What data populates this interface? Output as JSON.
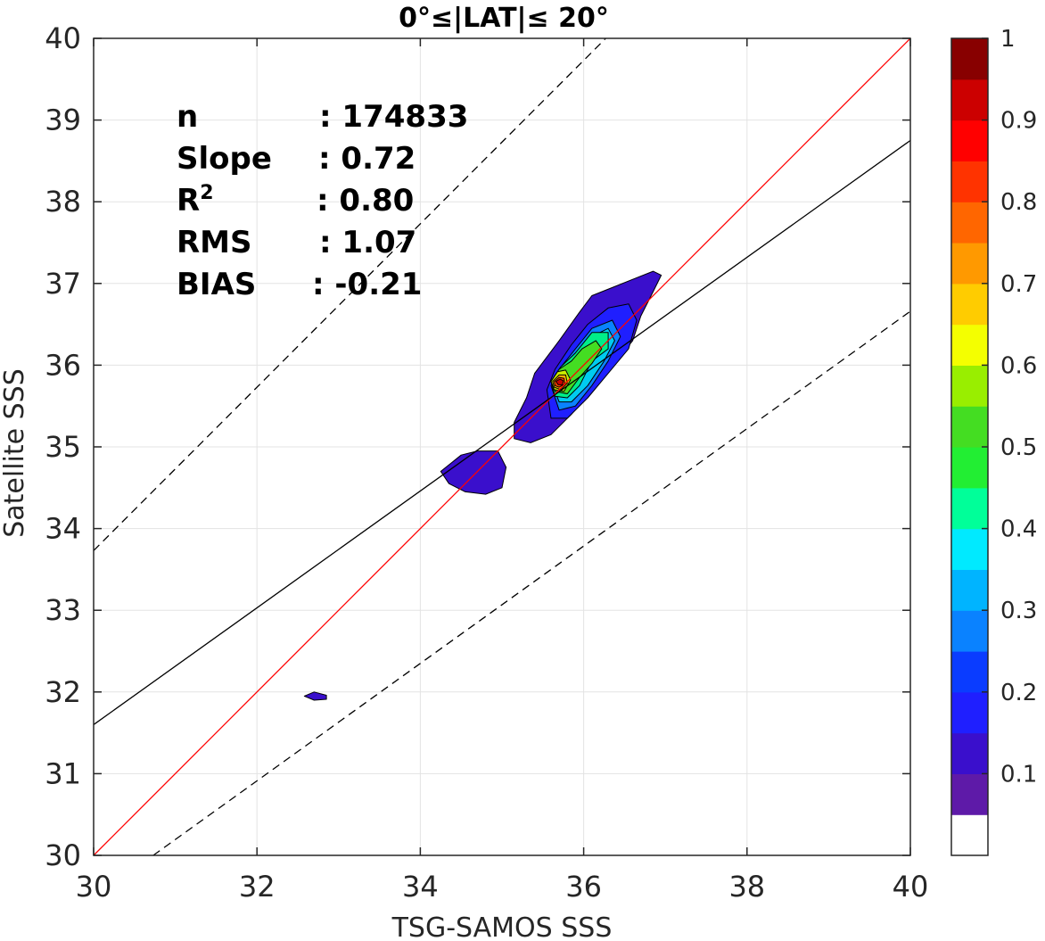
{
  "chart_data": {
    "type": "contour",
    "title": "0°≤|LAT|≤ 20°",
    "xlabel": "TSG-SAMOS SSS",
    "ylabel": "Satellite SSS",
    "xlim": [
      30,
      40
    ],
    "ylim": [
      30,
      40
    ],
    "xticks": [
      "30",
      "32",
      "34",
      "36",
      "38",
      "40"
    ],
    "yticks": [
      "30",
      "31",
      "32",
      "33",
      "34",
      "35",
      "36",
      "37",
      "38",
      "39",
      "40"
    ],
    "grid": true,
    "stats": [
      {
        "label": "n",
        "value": ": 174833"
      },
      {
        "label": "Slope",
        "value": ": 0.72"
      },
      {
        "label": "R",
        "sup": "2",
        "value": ": 0.80"
      },
      {
        "label": "RMS",
        "value": ": 1.07"
      },
      {
        "label": "BIAS",
        "value": ": -0.21"
      }
    ],
    "lines": [
      {
        "kind": "one-to-one",
        "color": "#ff0000",
        "points": [
          [
            30,
            30
          ],
          [
            40,
            40
          ]
        ]
      },
      {
        "kind": "regression",
        "color": "#000000",
        "points": [
          [
            30,
            31.6
          ],
          [
            40,
            38.75
          ]
        ]
      },
      {
        "kind": "upper-bound",
        "color": "#000000",
        "dash": true,
        "points": [
          [
            30,
            33.73
          ],
          [
            36.27,
            40
          ]
        ]
      },
      {
        "kind": "lower-bound",
        "color": "#000000",
        "dash": true,
        "points": [
          [
            30.73,
            30
          ],
          [
            40,
            36.66
          ]
        ]
      }
    ],
    "density_peak": {
      "x": 35.72,
      "y": 35.8
    },
    "contours": [
      {
        "level": 0.05,
        "color": "#3a0fcc",
        "points": [
          [
            35.3,
            35.6
          ],
          [
            35.4,
            35.9
          ],
          [
            35.7,
            36.3
          ],
          [
            35.95,
            36.65
          ],
          [
            36.1,
            36.85
          ],
          [
            36.35,
            36.95
          ],
          [
            36.6,
            37.05
          ],
          [
            36.85,
            37.15
          ],
          [
            36.95,
            37.1
          ],
          [
            36.85,
            36.9
          ],
          [
            36.7,
            36.6
          ],
          [
            36.6,
            36.3
          ],
          [
            36.4,
            36.05
          ],
          [
            36.15,
            35.75
          ],
          [
            35.85,
            35.4
          ],
          [
            35.6,
            35.15
          ],
          [
            35.35,
            35.05
          ],
          [
            35.15,
            35.1
          ],
          [
            35.15,
            35.3
          ]
        ]
      },
      {
        "level": 0.05,
        "color": "#3a0fcc",
        "points": [
          [
            34.25,
            34.7
          ],
          [
            34.5,
            34.9
          ],
          [
            34.7,
            34.95
          ],
          [
            34.95,
            34.95
          ],
          [
            35.05,
            34.75
          ],
          [
            35.0,
            34.5
          ],
          [
            34.8,
            34.42
          ],
          [
            34.55,
            34.45
          ],
          [
            34.35,
            34.55
          ]
        ]
      },
      {
        "level": 0.05,
        "color": "#3a0fcc",
        "points": [
          [
            32.58,
            31.95
          ],
          [
            32.7,
            32.0
          ],
          [
            32.85,
            31.96
          ],
          [
            32.85,
            31.91
          ],
          [
            32.7,
            31.9
          ]
        ]
      },
      {
        "level": 0.15,
        "color": "#1f1fff",
        "points": [
          [
            35.55,
            35.7
          ],
          [
            35.65,
            35.95
          ],
          [
            35.85,
            36.25
          ],
          [
            36.05,
            36.5
          ],
          [
            36.3,
            36.7
          ],
          [
            36.55,
            36.75
          ],
          [
            36.65,
            36.55
          ],
          [
            36.55,
            36.2
          ],
          [
            36.3,
            35.9
          ],
          [
            36.05,
            35.6
          ],
          [
            35.8,
            35.35
          ],
          [
            35.6,
            35.35
          ]
        ]
      },
      {
        "level": 0.25,
        "color": "#0a82ff",
        "points": [
          [
            35.6,
            35.75
          ],
          [
            35.7,
            35.95
          ],
          [
            35.9,
            36.2
          ],
          [
            36.1,
            36.45
          ],
          [
            36.35,
            36.55
          ],
          [
            36.45,
            36.35
          ],
          [
            36.3,
            36.05
          ],
          [
            36.1,
            35.75
          ],
          [
            35.9,
            35.5
          ],
          [
            35.7,
            35.45
          ]
        ]
      },
      {
        "level": 0.35,
        "color": "#00ccf0",
        "points": [
          [
            35.6,
            35.8
          ],
          [
            35.7,
            35.95
          ],
          [
            35.9,
            36.15
          ],
          [
            36.1,
            36.35
          ],
          [
            36.3,
            36.45
          ],
          [
            36.38,
            36.3
          ],
          [
            36.25,
            36.05
          ],
          [
            36.05,
            35.75
          ],
          [
            35.85,
            35.55
          ],
          [
            35.7,
            35.55
          ]
        ]
      },
      {
        "level": 0.45,
        "color": "#00ee88",
        "points": [
          [
            35.6,
            35.8
          ],
          [
            35.72,
            35.98
          ],
          [
            35.9,
            36.15
          ],
          [
            36.1,
            36.4
          ],
          [
            36.3,
            36.4
          ],
          [
            36.3,
            36.2
          ],
          [
            36.1,
            36.05
          ],
          [
            35.95,
            35.75
          ],
          [
            35.8,
            35.6
          ],
          [
            35.65,
            35.62
          ]
        ]
      },
      {
        "level": 0.55,
        "color": "#44dd22",
        "points": [
          [
            35.6,
            35.8
          ],
          [
            35.7,
            35.95
          ],
          [
            35.85,
            36.05
          ],
          [
            35.98,
            36.2
          ],
          [
            36.15,
            36.3
          ],
          [
            36.22,
            36.2
          ],
          [
            36.1,
            36.02
          ],
          [
            35.95,
            35.85
          ],
          [
            35.8,
            35.65
          ],
          [
            35.65,
            35.68
          ]
        ]
      },
      {
        "level": 0.65,
        "color": "#ccee00",
        "points": [
          [
            35.6,
            35.8
          ],
          [
            35.68,
            35.92
          ],
          [
            35.78,
            35.94
          ],
          [
            35.84,
            35.82
          ],
          [
            35.76,
            35.68
          ],
          [
            35.64,
            35.7
          ]
        ]
      },
      {
        "level": 0.75,
        "color": "#ffb000",
        "points": [
          [
            35.62,
            35.8
          ],
          [
            35.7,
            35.88
          ],
          [
            35.78,
            35.88
          ],
          [
            35.8,
            35.78
          ],
          [
            35.72,
            35.7
          ],
          [
            35.64,
            35.73
          ]
        ]
      },
      {
        "level": 0.85,
        "color": "#ff4000",
        "points": [
          [
            35.64,
            35.8
          ],
          [
            35.7,
            35.85
          ],
          [
            35.76,
            35.84
          ],
          [
            35.77,
            35.77
          ],
          [
            35.7,
            35.73
          ],
          [
            35.65,
            35.75
          ]
        ]
      },
      {
        "level": 0.95,
        "color": "#cc0000",
        "points": [
          [
            35.66,
            35.8
          ],
          [
            35.71,
            35.83
          ],
          [
            35.75,
            35.81
          ],
          [
            35.74,
            35.76
          ],
          [
            35.69,
            35.76
          ]
        ]
      }
    ],
    "colorbar": {
      "ticks": [
        "0.1",
        "0.2",
        "0.3",
        "0.4",
        "0.5",
        "0.6",
        "0.7",
        "0.8",
        "0.9",
        "1"
      ],
      "range": [
        0,
        1
      ],
      "colors": [
        "#ffffff",
        "#5e1aa8",
        "#3a0fcc",
        "#1f1fff",
        "#0a3cff",
        "#0a82ff",
        "#00b4ff",
        "#00eaff",
        "#00ff99",
        "#22ee33",
        "#44dd22",
        "#99ee00",
        "#f4ff00",
        "#ffcc00",
        "#ff9900",
        "#ff6600",
        "#ff3300",
        "#ff0000",
        "#cc0000",
        "#880000"
      ]
    }
  }
}
